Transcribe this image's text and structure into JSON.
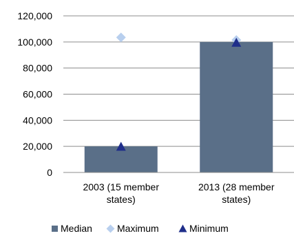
{
  "chart_data": {
    "type": "bar",
    "categories": [
      "2003 (15 member states)",
      "2013 (28 member states)"
    ],
    "category_lines": [
      [
        "2003 (15 member",
        "states)"
      ],
      [
        "2013 (28 member",
        "states)"
      ]
    ],
    "series": [
      {
        "name": "Median",
        "kind": "bar",
        "color": "#5a6f88",
        "values": [
          20000,
          100000
        ]
      },
      {
        "name": "Maximum",
        "kind": "marker",
        "marker": "diamond",
        "color": "#b8cfee",
        "values": [
          103500,
          101500
        ]
      },
      {
        "name": "Minimum",
        "kind": "marker",
        "marker": "triangle",
        "color": "#1f2e8a",
        "values": [
          19800,
          99500
        ]
      }
    ],
    "ylim": [
      0,
      120000
    ],
    "yticks": [
      0,
      20000,
      40000,
      60000,
      80000,
      100000,
      120000
    ],
    "ytick_labels": [
      "0",
      "20,000",
      "40,000",
      "60,000",
      "80,000",
      "100,000",
      "120,000"
    ],
    "grid": true,
    "legend_position": "bottom"
  }
}
